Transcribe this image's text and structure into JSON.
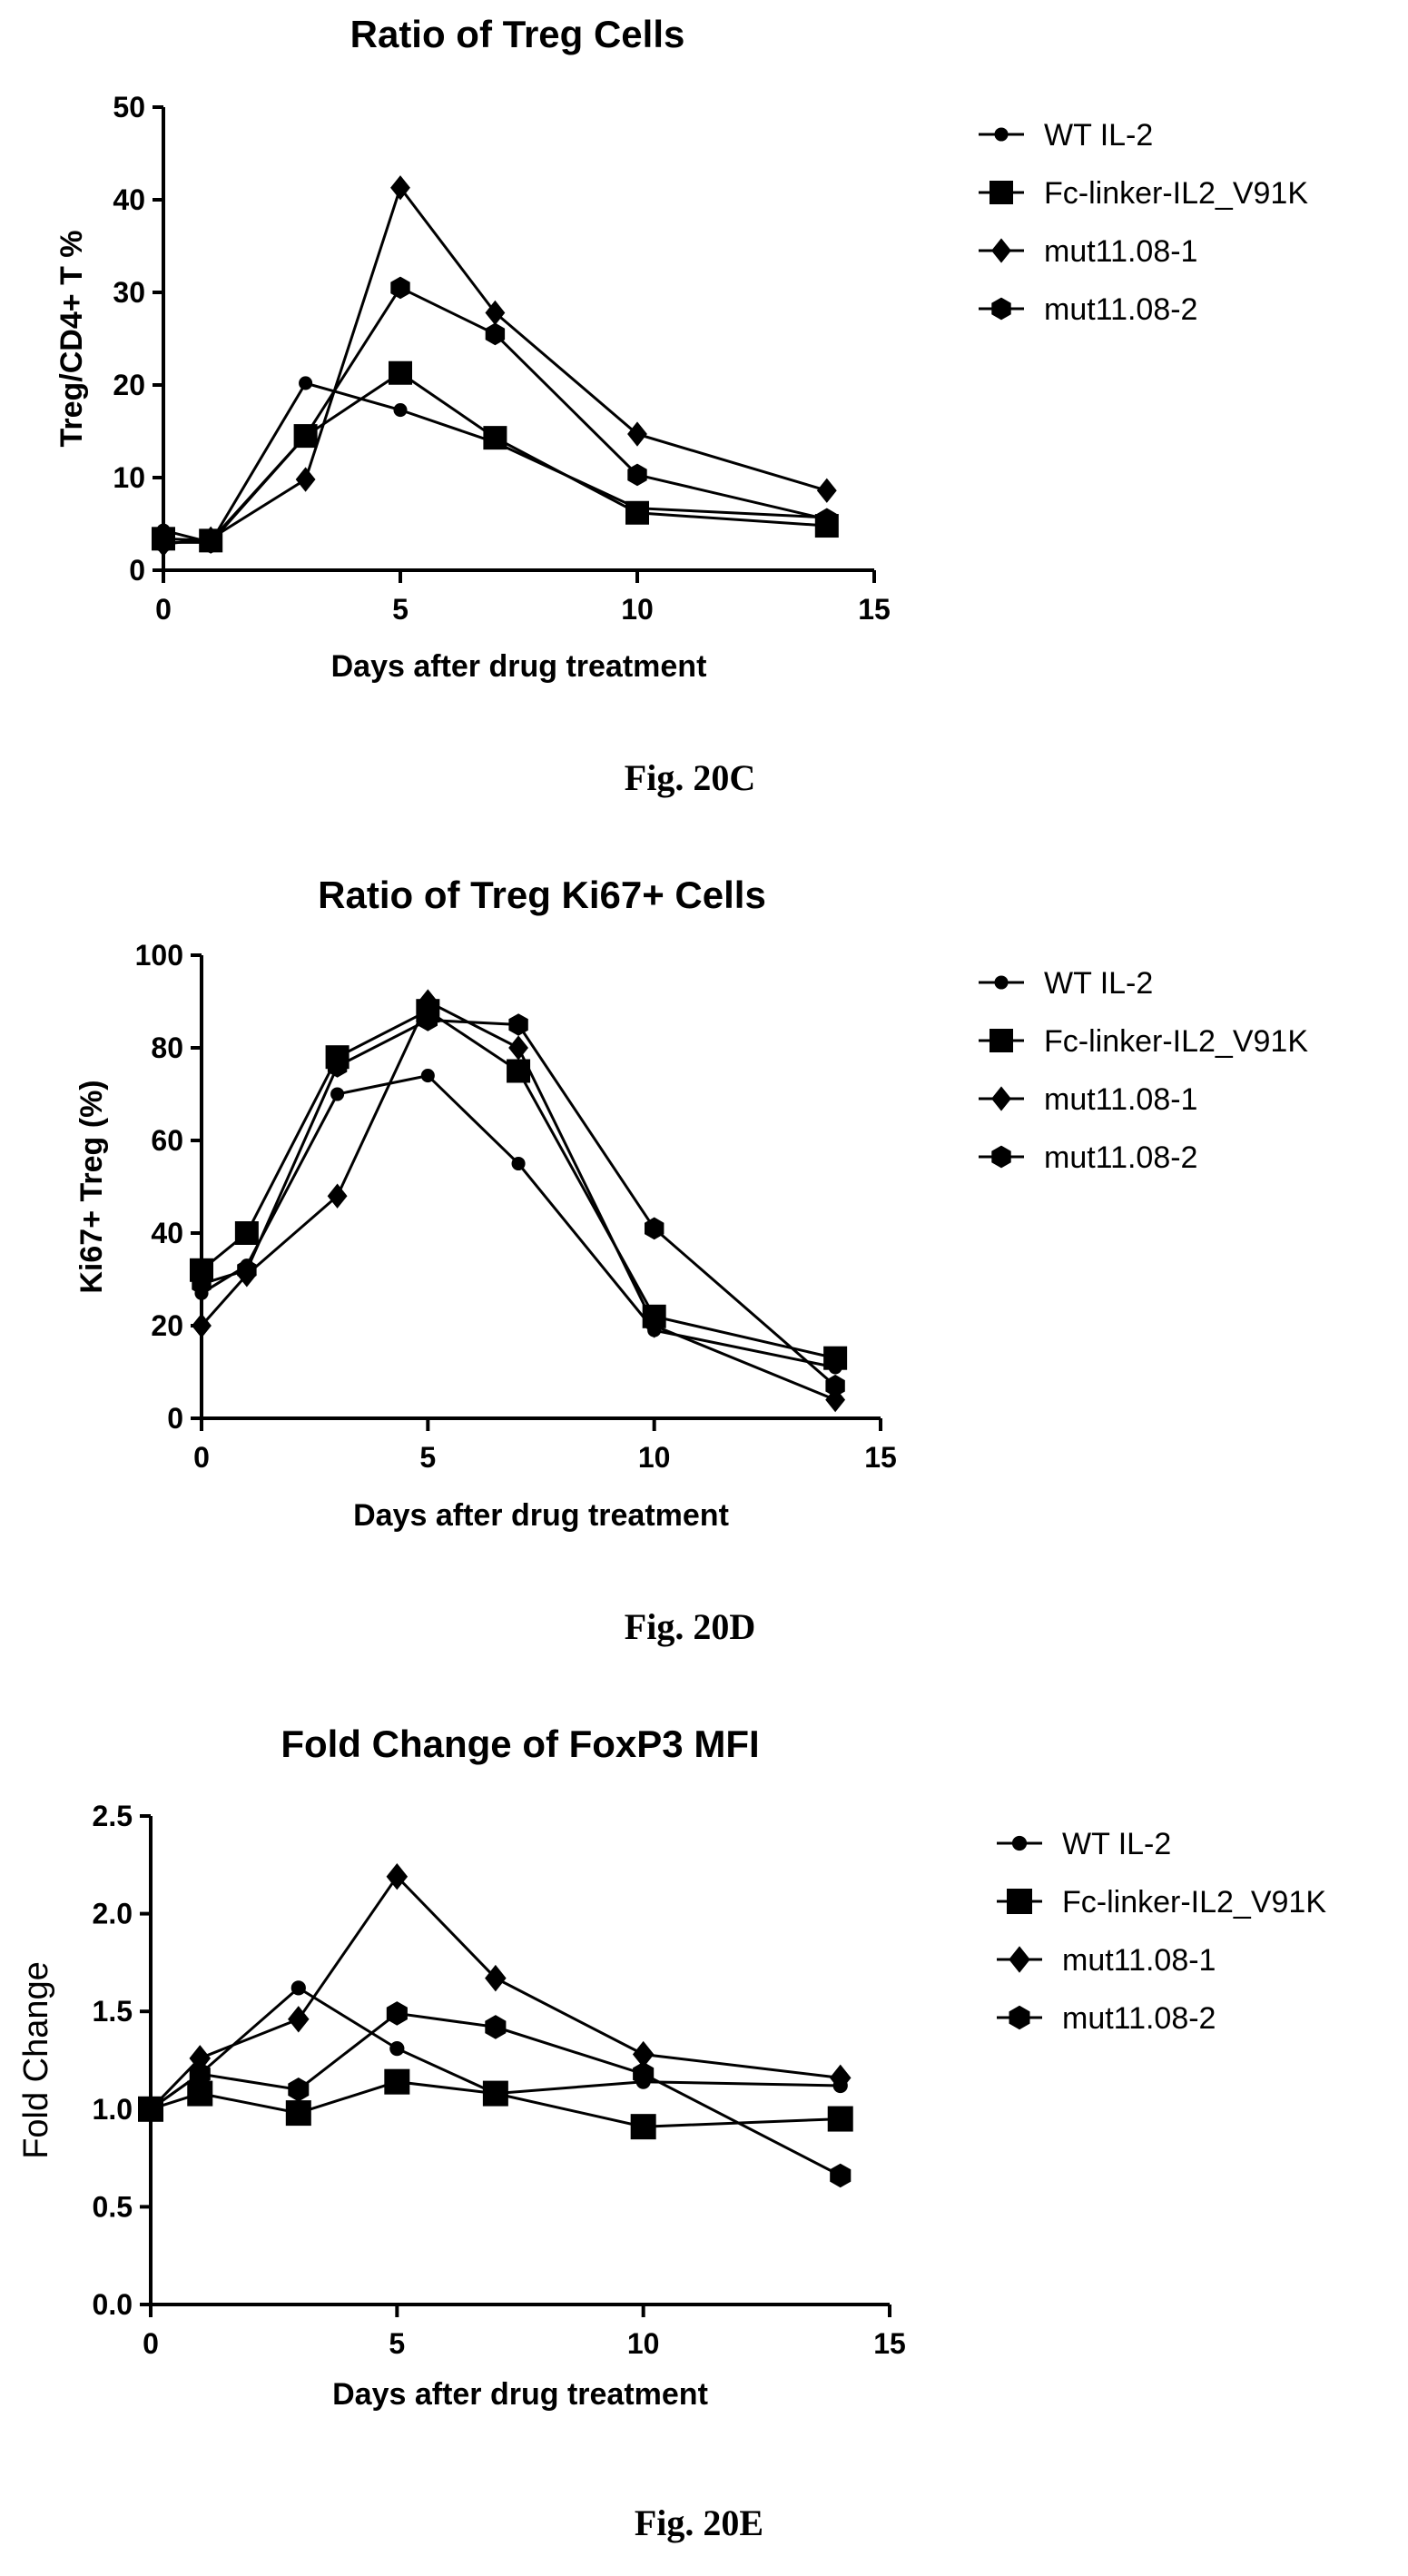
{
  "chart_data": [
    {
      "type": "line",
      "title": "Ratio of Treg Cells",
      "xlabel": "Days after drug treatment",
      "ylabel": "Treg/CD4+ T %",
      "xlim": [
        0,
        15
      ],
      "ylim": [
        0,
        50
      ],
      "xticks": [
        0,
        5,
        10,
        15
      ],
      "yticks": [
        0,
        10,
        20,
        30,
        40,
        50
      ],
      "caption": "Fig. 20C",
      "legend_position": "right",
      "series": [
        {
          "name": "WT IL-2",
          "marker": "circle",
          "x": [
            0,
            1,
            3,
            5,
            7,
            10,
            14
          ],
          "y": [
            4.3,
            3.0,
            20.2,
            17.3,
            13.8,
            6.7,
            5.7
          ]
        },
        {
          "name": "Fc-linker-IL2_V91K",
          "marker": "square",
          "x": [
            0,
            1,
            3,
            5,
            7,
            10,
            14
          ],
          "y": [
            3.4,
            3.2,
            14.5,
            21.3,
            14.3,
            6.2,
            4.8
          ]
        },
        {
          "name": "mut11.08-1",
          "marker": "diamond",
          "x": [
            0,
            1,
            3,
            5,
            7,
            10,
            14
          ],
          "y": [
            2.8,
            3.4,
            9.8,
            41.3,
            27.8,
            14.7,
            8.6
          ]
        },
        {
          "name": "mut11.08-2",
          "marker": "hexagon",
          "x": [
            0,
            1,
            3,
            5,
            7,
            10,
            14
          ],
          "y": [
            3.0,
            3.0,
            14.5,
            30.5,
            25.5,
            10.3,
            5.5
          ]
        }
      ]
    },
    {
      "type": "line",
      "title": "Ratio of Treg Ki67+ Cells",
      "xlabel": "Days after drug treatment",
      "ylabel": "Ki67+ Treg (%)",
      "xlim": [
        0,
        15
      ],
      "ylim": [
        0,
        100
      ],
      "xticks": [
        0,
        5,
        10,
        15
      ],
      "yticks": [
        0,
        20,
        40,
        60,
        80,
        100
      ],
      "caption": "Fig. 20D",
      "legend_position": "right",
      "series": [
        {
          "name": "WT IL-2",
          "marker": "circle",
          "x": [
            0,
            1,
            3,
            5,
            7,
            10,
            14
          ],
          "y": [
            27,
            33,
            70,
            74,
            55,
            19,
            11
          ]
        },
        {
          "name": "Fc-linker-IL2_V91K",
          "marker": "square",
          "x": [
            0,
            1,
            3,
            5,
            7,
            10,
            14
          ],
          "y": [
            32,
            40,
            78,
            88,
            75,
            22,
            13
          ]
        },
        {
          "name": "mut11.08-1",
          "marker": "diamond",
          "x": [
            0,
            1,
            3,
            5,
            7,
            10,
            14
          ],
          "y": [
            20,
            31,
            48,
            90,
            80,
            20,
            4
          ]
        },
        {
          "name": "mut11.08-2",
          "marker": "hexagon",
          "x": [
            0,
            1,
            3,
            5,
            7,
            10,
            14
          ],
          "y": [
            29,
            32,
            76,
            86,
            85,
            41,
            7
          ]
        }
      ]
    },
    {
      "type": "line",
      "title": "Fold Change of FoxP3 MFI",
      "xlabel": "Days after drug treatment",
      "ylabel": "Fold Change",
      "xlim": [
        0,
        15
      ],
      "ylim": [
        0,
        2.5
      ],
      "xticks": [
        0,
        5,
        10,
        15
      ],
      "yticks": [
        "0.0",
        "0.5",
        "1.0",
        "1.5",
        "2.0",
        "2.5"
      ],
      "caption": "Fig. 20E",
      "legend_position": "right",
      "series": [
        {
          "name": "WT IL-2",
          "marker": "circle",
          "x": [
            0,
            1,
            3,
            5,
            7,
            10,
            14
          ],
          "y": [
            1.0,
            1.18,
            1.62,
            1.31,
            1.08,
            1.14,
            1.12
          ]
        },
        {
          "name": "Fc-linker-IL2_V91K",
          "marker": "square",
          "x": [
            0,
            1,
            3,
            5,
            7,
            10,
            14
          ],
          "y": [
            1.0,
            1.08,
            0.98,
            1.14,
            1.08,
            0.91,
            0.95
          ]
        },
        {
          "name": "mut11.08-1",
          "marker": "diamond",
          "x": [
            0,
            1,
            3,
            5,
            7,
            10,
            14
          ],
          "y": [
            1.0,
            1.26,
            1.46,
            2.19,
            1.67,
            1.28,
            1.16
          ]
        },
        {
          "name": "mut11.08-2",
          "marker": "hexagon",
          "x": [
            0,
            1,
            3,
            5,
            7,
            10,
            14
          ],
          "y": [
            1.0,
            1.18,
            1.1,
            1.49,
            1.42,
            1.18,
            0.66
          ]
        }
      ]
    }
  ]
}
